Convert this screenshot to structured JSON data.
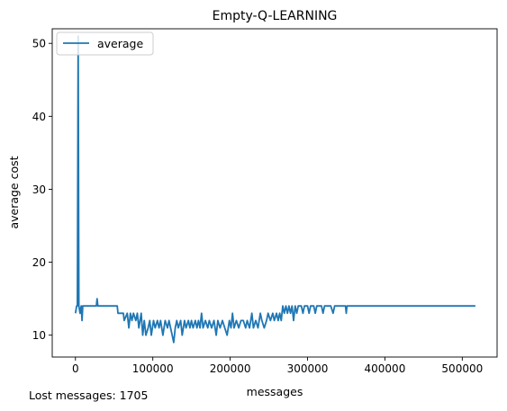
{
  "chart_data": {
    "type": "line",
    "title": "Empty-Q-LEARNING",
    "xlabel": "messages",
    "ylabel": "average cost",
    "xlim": [
      -30000,
      545000
    ],
    "ylim": [
      7,
      52
    ],
    "xticks": [
      0,
      100000,
      200000,
      300000,
      400000,
      500000
    ],
    "xtick_labels": [
      "0",
      "100000",
      "200000",
      "300000",
      "400000",
      "500000"
    ],
    "yticks": [
      10,
      20,
      30,
      40,
      50
    ],
    "ytick_labels": [
      "10",
      "20",
      "30",
      "40",
      "50"
    ],
    "grid": false,
    "legend": {
      "position": "top-left",
      "entries": [
        "average"
      ]
    },
    "series": [
      {
        "name": "average",
        "color": "#1f77b4",
        "points": [
          [
            0,
            13
          ],
          [
            1500,
            14
          ],
          [
            2500,
            14
          ],
          [
            3500,
            51
          ],
          [
            4500,
            14
          ],
          [
            6000,
            13
          ],
          [
            7500,
            14
          ],
          [
            8500,
            12
          ],
          [
            9500,
            14
          ],
          [
            12000,
            14
          ],
          [
            20000,
            14
          ],
          [
            27000,
            14
          ],
          [
            28000,
            15
          ],
          [
            29000,
            14
          ],
          [
            40000,
            14
          ],
          [
            54000,
            14
          ],
          [
            55000,
            13
          ],
          [
            62000,
            13
          ],
          [
            63000,
            12
          ],
          [
            67000,
            13
          ],
          [
            69000,
            11
          ],
          [
            71000,
            13
          ],
          [
            73000,
            12
          ],
          [
            75000,
            13
          ],
          [
            78000,
            12
          ],
          [
            80000,
            13
          ],
          [
            82000,
            11
          ],
          [
            85000,
            13
          ],
          [
            87000,
            10
          ],
          [
            89000,
            12
          ],
          [
            91000,
            10
          ],
          [
            94000,
            11
          ],
          [
            96000,
            12
          ],
          [
            98000,
            10
          ],
          [
            101000,
            12
          ],
          [
            103000,
            11
          ],
          [
            106000,
            12
          ],
          [
            108000,
            11
          ],
          [
            110000,
            12
          ],
          [
            113000,
            10
          ],
          [
            116000,
            12
          ],
          [
            119000,
            11
          ],
          [
            121000,
            12
          ],
          [
            123000,
            11
          ],
          [
            125000,
            10
          ],
          [
            127000,
            9
          ],
          [
            129000,
            11
          ],
          [
            131000,
            12
          ],
          [
            133000,
            11
          ],
          [
            136000,
            12
          ],
          [
            138000,
            10
          ],
          [
            141000,
            12
          ],
          [
            143000,
            11
          ],
          [
            146000,
            12
          ],
          [
            148000,
            11
          ],
          [
            150000,
            12
          ],
          [
            152000,
            11
          ],
          [
            155000,
            12
          ],
          [
            157000,
            11
          ],
          [
            159000,
            12
          ],
          [
            161000,
            11
          ],
          [
            163000,
            13
          ],
          [
            165000,
            11
          ],
          [
            168000,
            12
          ],
          [
            171000,
            11
          ],
          [
            173000,
            12
          ],
          [
            176000,
            11
          ],
          [
            179000,
            12
          ],
          [
            182000,
            10
          ],
          [
            184000,
            12
          ],
          [
            187000,
            11
          ],
          [
            190000,
            12
          ],
          [
            193000,
            11
          ],
          [
            196000,
            10
          ],
          [
            199000,
            12
          ],
          [
            201000,
            11
          ],
          [
            203000,
            13
          ],
          [
            205000,
            11
          ],
          [
            208000,
            12
          ],
          [
            211000,
            11
          ],
          [
            214000,
            12
          ],
          [
            217000,
            12
          ],
          [
            220000,
            11
          ],
          [
            222000,
            12
          ],
          [
            225000,
            11
          ],
          [
            228000,
            13
          ],
          [
            230000,
            11
          ],
          [
            233000,
            12
          ],
          [
            236000,
            11
          ],
          [
            239000,
            13
          ],
          [
            241000,
            12
          ],
          [
            244000,
            11
          ],
          [
            247000,
            12
          ],
          [
            249000,
            13
          ],
          [
            252000,
            12
          ],
          [
            255000,
            13
          ],
          [
            257000,
            12
          ],
          [
            260000,
            13
          ],
          [
            262000,
            12
          ],
          [
            264000,
            13
          ],
          [
            266000,
            12
          ],
          [
            268000,
            14
          ],
          [
            270000,
            13
          ],
          [
            272000,
            14
          ],
          [
            274000,
            13
          ],
          [
            276000,
            14
          ],
          [
            278000,
            13
          ],
          [
            280000,
            14
          ],
          [
            282000,
            12
          ],
          [
            284000,
            14
          ],
          [
            286000,
            13
          ],
          [
            288000,
            14
          ],
          [
            292000,
            14
          ],
          [
            294000,
            13
          ],
          [
            296000,
            14
          ],
          [
            300000,
            14
          ],
          [
            302000,
            13
          ],
          [
            304000,
            14
          ],
          [
            308000,
            14
          ],
          [
            310000,
            13
          ],
          [
            312000,
            14
          ],
          [
            318000,
            14
          ],
          [
            320000,
            13
          ],
          [
            322000,
            14
          ],
          [
            330000,
            14
          ],
          [
            333000,
            13
          ],
          [
            335000,
            14
          ],
          [
            349000,
            14
          ],
          [
            350000,
            13
          ],
          [
            351000,
            14
          ],
          [
            420000,
            14
          ],
          [
            517000,
            14
          ]
        ]
      }
    ]
  },
  "footer": {
    "lost_messages": "Lost messages: 1705"
  }
}
